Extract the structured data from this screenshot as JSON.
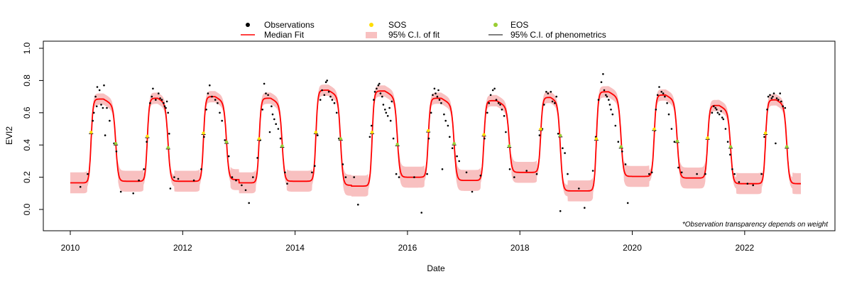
{
  "chart_data": {
    "type": "line",
    "title": "",
    "xlabel": "Date",
    "ylabel": "EVI2",
    "xlim": [
      2010,
      2023
    ],
    "ylim": [
      -0.1,
      1.05
    ],
    "x_ticks": [
      2010,
      2012,
      2014,
      2016,
      2018,
      2020,
      2022
    ],
    "y_ticks": [
      0.0,
      0.2,
      0.4,
      0.6,
      0.8,
      1.0
    ],
    "x_tick_labels": [
      "2010",
      "2012",
      "2014",
      "2016",
      "2018",
      "2020",
      "2022"
    ],
    "y_tick_labels": [
      "0.0",
      "0.2",
      "0.4",
      "0.6",
      "0.8",
      "1.0"
    ],
    "annotation": "*Observation transparency depends on weight",
    "legend": {
      "placement": "top-center",
      "entries": [
        {
          "label": "Observations",
          "symbol": "dot",
          "color": "#000000"
        },
        {
          "label": "SOS",
          "symbol": "dot",
          "color": "#ffdd00"
        },
        {
          "label": "EOS",
          "symbol": "dot",
          "color": "#9acd32"
        },
        {
          "label": "Median Fit",
          "symbol": "line",
          "color": "#ff0000"
        },
        {
          "label": "95% C.I. of fit",
          "symbol": "band",
          "color": "#f8c0c0"
        },
        {
          "label": "95% C.I. of phenometrics",
          "symbol": "line",
          "color": "#000000"
        }
      ]
    },
    "colors": {
      "fit": "#ff0000",
      "band": "#f8c0c0",
      "obs": "#000000",
      "sos": "#ffdd00",
      "eos": "#9acd32",
      "ci": "#000000"
    },
    "seasons": [
      {
        "year": 2010,
        "base_before": 0.165,
        "base_after": 0.175,
        "sos": 2010.37,
        "eos": 2010.81,
        "peak": 0.685,
        "sos_value": 0.47,
        "eos_value": 0.4
      },
      {
        "year": 2011,
        "base_before": 0.175,
        "base_after": 0.175,
        "sos": 2011.37,
        "eos": 2011.74,
        "peak": 0.69,
        "sos_value": 0.445,
        "eos_value": 0.375
      },
      {
        "year": 2012,
        "base_before": 0.175,
        "base_after": 0.185,
        "sos": 2012.37,
        "eos": 2012.78,
        "peak": 0.7,
        "sos_value": 0.465,
        "eos_value": 0.41
      },
      {
        "year": 2013,
        "base_before": 0.165,
        "base_after": 0.175,
        "sos": 2013.36,
        "eos": 2013.77,
        "peak": 0.69,
        "sos_value": 0.43,
        "eos_value": 0.385
      },
      {
        "year": 2014,
        "base_before": 0.175,
        "base_after": 0.15,
        "sos": 2014.37,
        "eos": 2014.81,
        "peak": 0.74,
        "sos_value": 0.47,
        "eos_value": 0.43
      },
      {
        "year": 2015,
        "base_before": 0.145,
        "base_after": 0.2,
        "sos": 2015.37,
        "eos": 2015.82,
        "peak": 0.735,
        "sos_value": 0.47,
        "eos_value": 0.395
      },
      {
        "year": 2016,
        "base_before": 0.2,
        "base_after": 0.18,
        "sos": 2016.37,
        "eos": 2016.83,
        "peak": 0.69,
        "sos_value": 0.48,
        "eos_value": 0.4
      },
      {
        "year": 2017,
        "base_before": 0.18,
        "base_after": 0.23,
        "sos": 2017.36,
        "eos": 2017.81,
        "peak": 0.675,
        "sos_value": 0.455,
        "eos_value": 0.385
      },
      {
        "year": 2018,
        "base_before": 0.23,
        "base_after": 0.115,
        "sos": 2018.37,
        "eos": 2018.72,
        "peak": 0.695,
        "sos_value": 0.49,
        "eos_value": 0.45
      },
      {
        "year": 2019,
        "base_before": 0.115,
        "base_after": 0.205,
        "sos": 2019.36,
        "eos": 2019.8,
        "peak": 0.73,
        "sos_value": 0.43,
        "eos_value": 0.38
      },
      {
        "year": 2020,
        "base_before": 0.205,
        "base_after": 0.195,
        "sos": 2020.39,
        "eos": 2020.8,
        "peak": 0.71,
        "sos_value": 0.49,
        "eos_value": 0.415
      },
      {
        "year": 2021,
        "base_before": 0.195,
        "base_after": 0.16,
        "sos": 2021.34,
        "eos": 2021.75,
        "peak": 0.645,
        "sos_value": 0.435,
        "eos_value": 0.38
      },
      {
        "year": 2022,
        "base_before": 0.16,
        "base_after": 0.16,
        "sos": 2022.37,
        "eos": 2022.75,
        "peak": 0.68,
        "sos_value": 0.465,
        "eos_value": 0.38
      }
    ],
    "observations": [
      [
        2010.18,
        0.14
      ],
      [
        2010.31,
        0.22
      ],
      [
        2010.4,
        0.55
      ],
      [
        2010.42,
        0.6
      ],
      [
        2010.45,
        0.7
      ],
      [
        2010.47,
        0.64
      ],
      [
        2010.48,
        0.76
      ],
      [
        2010.52,
        0.74
      ],
      [
        2010.55,
        0.65
      ],
      [
        2010.58,
        0.63
      ],
      [
        2010.6,
        0.77
      ],
      [
        2010.62,
        0.46
      ],
      [
        2010.65,
        0.63
      ],
      [
        2010.7,
        0.55
      ],
      [
        2010.78,
        0.41
      ],
      [
        2010.82,
        0.36
      ],
      [
        2010.9,
        0.11
      ],
      [
        2011.12,
        0.1
      ],
      [
        2011.22,
        0.18
      ],
      [
        2011.31,
        0.25
      ],
      [
        2011.36,
        0.42
      ],
      [
        2011.42,
        0.66
      ],
      [
        2011.45,
        0.7
      ],
      [
        2011.47,
        0.75
      ],
      [
        2011.52,
        0.68
      ],
      [
        2011.57,
        0.72
      ],
      [
        2011.6,
        0.69
      ],
      [
        2011.63,
        0.68
      ],
      [
        2011.66,
        0.66
      ],
      [
        2011.68,
        0.64
      ],
      [
        2011.7,
        0.63
      ],
      [
        2011.72,
        0.67
      ],
      [
        2011.74,
        0.6
      ],
      [
        2011.76,
        0.47
      ],
      [
        2011.78,
        0.13
      ],
      [
        2011.85,
        0.2
      ],
      [
        2011.92,
        0.19
      ],
      [
        2012.2,
        0.18
      ],
      [
        2012.33,
        0.25
      ],
      [
        2012.38,
        0.45
      ],
      [
        2012.42,
        0.62
      ],
      [
        2012.45,
        0.72
      ],
      [
        2012.48,
        0.77
      ],
      [
        2012.52,
        0.7
      ],
      [
        2012.58,
        0.68
      ],
      [
        2012.62,
        0.66
      ],
      [
        2012.66,
        0.6
      ],
      [
        2012.7,
        0.55
      ],
      [
        2012.75,
        0.43
      ],
      [
        2012.82,
        0.33
      ],
      [
        2012.88,
        0.2
      ],
      [
        2012.95,
        0.18
      ],
      [
        2013.05,
        0.15
      ],
      [
        2013.12,
        0.12
      ],
      [
        2013.18,
        0.04
      ],
      [
        2013.25,
        0.2
      ],
      [
        2013.33,
        0.32
      ],
      [
        2013.38,
        0.43
      ],
      [
        2013.42,
        0.62
      ],
      [
        2013.45,
        0.78
      ],
      [
        2013.48,
        0.72
      ],
      [
        2013.52,
        0.71
      ],
      [
        2013.55,
        0.48
      ],
      [
        2013.58,
        0.64
      ],
      [
        2013.6,
        0.59
      ],
      [
        2013.63,
        0.56
      ],
      [
        2013.66,
        0.53
      ],
      [
        2013.7,
        0.5
      ],
      [
        2013.74,
        0.44
      ],
      [
        2013.76,
        0.39
      ],
      [
        2013.82,
        0.23
      ],
      [
        2013.86,
        0.16
      ],
      [
        2014.3,
        0.23
      ],
      [
        2014.35,
        0.27
      ],
      [
        2014.4,
        0.46
      ],
      [
        2014.45,
        0.68
      ],
      [
        2014.48,
        0.74
      ],
      [
        2014.52,
        0.71
      ],
      [
        2014.55,
        0.79
      ],
      [
        2014.57,
        0.8
      ],
      [
        2014.6,
        0.73
      ],
      [
        2014.63,
        0.7
      ],
      [
        2014.66,
        0.68
      ],
      [
        2014.7,
        0.66
      ],
      [
        2014.74,
        0.6
      ],
      [
        2014.78,
        0.44
      ],
      [
        2014.85,
        0.28
      ],
      [
        2014.9,
        0.2
      ],
      [
        2015.05,
        0.2
      ],
      [
        2015.12,
        0.03
      ],
      [
        2015.33,
        0.45
      ],
      [
        2015.36,
        0.52
      ],
      [
        2015.4,
        0.68
      ],
      [
        2015.42,
        0.73
      ],
      [
        2015.45,
        0.75
      ],
      [
        2015.48,
        0.77
      ],
      [
        2015.5,
        0.78
      ],
      [
        2015.52,
        0.72
      ],
      [
        2015.55,
        0.7
      ],
      [
        2015.57,
        0.65
      ],
      [
        2015.6,
        0.62
      ],
      [
        2015.62,
        0.6
      ],
      [
        2015.65,
        0.58
      ],
      [
        2015.68,
        0.63
      ],
      [
        2015.7,
        0.55
      ],
      [
        2015.72,
        0.67
      ],
      [
        2015.75,
        0.44
      ],
      [
        2015.8,
        0.22
      ],
      [
        2015.85,
        0.2
      ],
      [
        2016.12,
        0.2
      ],
      [
        2016.25,
        -0.02
      ],
      [
        2016.35,
        0.22
      ],
      [
        2016.38,
        0.44
      ],
      [
        2016.42,
        0.6
      ],
      [
        2016.45,
        0.71
      ],
      [
        2016.48,
        0.75
      ],
      [
        2016.5,
        0.72
      ],
      [
        2016.53,
        0.7
      ],
      [
        2016.55,
        0.74
      ],
      [
        2016.57,
        0.68
      ],
      [
        2016.6,
        0.66
      ],
      [
        2016.62,
        0.25
      ],
      [
        2016.65,
        0.59
      ],
      [
        2016.68,
        0.55
      ],
      [
        2016.72,
        0.52
      ],
      [
        2016.75,
        0.45
      ],
      [
        2016.8,
        0.38
      ],
      [
        2016.88,
        0.33
      ],
      [
        2016.92,
        0.3
      ],
      [
        2017.05,
        0.23
      ],
      [
        2017.15,
        0.11
      ],
      [
        2017.3,
        0.21
      ],
      [
        2017.37,
        0.44
      ],
      [
        2017.42,
        0.6
      ],
      [
        2017.45,
        0.66
      ],
      [
        2017.48,
        0.71
      ],
      [
        2017.52,
        0.74
      ],
      [
        2017.55,
        0.75
      ],
      [
        2017.58,
        0.68
      ],
      [
        2017.62,
        0.66
      ],
      [
        2017.65,
        0.65
      ],
      [
        2017.68,
        0.62
      ],
      [
        2017.72,
        0.58
      ],
      [
        2017.75,
        0.48
      ],
      [
        2017.82,
        0.25
      ],
      [
        2017.9,
        0.2
      ],
      [
        2018.12,
        0.24
      ],
      [
        2018.3,
        0.22
      ],
      [
        2018.35,
        0.46
      ],
      [
        2018.4,
        0.5
      ],
      [
        2018.43,
        0.65
      ],
      [
        2018.47,
        0.73
      ],
      [
        2018.5,
        0.72
      ],
      [
        2018.55,
        0.73
      ],
      [
        2018.58,
        0.67
      ],
      [
        2018.62,
        0.66
      ],
      [
        2018.65,
        0.7
      ],
      [
        2018.68,
        0.47
      ],
      [
        2018.72,
        -0.01
      ],
      [
        2018.76,
        0.38
      ],
      [
        2018.8,
        0.35
      ],
      [
        2018.85,
        0.22
      ],
      [
        2019.05,
        0.13
      ],
      [
        2019.15,
        0.01
      ],
      [
        2019.3,
        0.24
      ],
      [
        2019.35,
        0.45
      ],
      [
        2019.4,
        0.68
      ],
      [
        2019.45,
        0.79
      ],
      [
        2019.48,
        0.84
      ],
      [
        2019.5,
        0.74
      ],
      [
        2019.53,
        0.71
      ],
      [
        2019.55,
        0.7
      ],
      [
        2019.58,
        0.68
      ],
      [
        2019.6,
        0.65
      ],
      [
        2019.62,
        0.62
      ],
      [
        2019.65,
        0.59
      ],
      [
        2019.7,
        0.52
      ],
      [
        2019.75,
        0.42
      ],
      [
        2019.82,
        0.36
      ],
      [
        2019.88,
        0.28
      ],
      [
        2019.92,
        0.04
      ],
      [
        2020.3,
        0.22
      ],
      [
        2020.35,
        0.23
      ],
      [
        2020.4,
        0.49
      ],
      [
        2020.42,
        0.62
      ],
      [
        2020.45,
        0.71
      ],
      [
        2020.48,
        0.76
      ],
      [
        2020.52,
        0.73
      ],
      [
        2020.55,
        0.72
      ],
      [
        2020.58,
        0.7
      ],
      [
        2020.62,
        0.66
      ],
      [
        2020.65,
        0.59
      ],
      [
        2020.7,
        0.5
      ],
      [
        2020.75,
        0.42
      ],
      [
        2020.82,
        0.26
      ],
      [
        2020.88,
        0.23
      ],
      [
        2021.15,
        0.22
      ],
      [
        2021.3,
        0.22
      ],
      [
        2021.35,
        0.44
      ],
      [
        2021.42,
        0.6
      ],
      [
        2021.45,
        0.64
      ],
      [
        2021.48,
        0.63
      ],
      [
        2021.5,
        0.62
      ],
      [
        2021.52,
        0.6
      ],
      [
        2021.55,
        0.59
      ],
      [
        2021.58,
        0.61
      ],
      [
        2021.6,
        0.57
      ],
      [
        2021.62,
        0.56
      ],
      [
        2021.66,
        0.5
      ],
      [
        2021.7,
        0.42
      ],
      [
        2021.74,
        0.34
      ],
      [
        2021.78,
        0.25
      ],
      [
        2021.82,
        0.22
      ],
      [
        2021.9,
        0.17
      ],
      [
        2022.05,
        0.16
      ],
      [
        2022.15,
        0.15
      ],
      [
        2022.3,
        0.22
      ],
      [
        2022.35,
        0.45
      ],
      [
        2022.4,
        0.62
      ],
      [
        2022.42,
        0.7
      ],
      [
        2022.45,
        0.71
      ],
      [
        2022.48,
        0.69
      ],
      [
        2022.5,
        0.7
      ],
      [
        2022.52,
        0.72
      ],
      [
        2022.55,
        0.41
      ],
      [
        2022.57,
        0.69
      ],
      [
        2022.6,
        0.68
      ],
      [
        2022.63,
        0.72
      ],
      [
        2022.65,
        0.67
      ],
      [
        2022.68,
        0.64
      ],
      [
        2022.72,
        0.63
      ]
    ]
  }
}
